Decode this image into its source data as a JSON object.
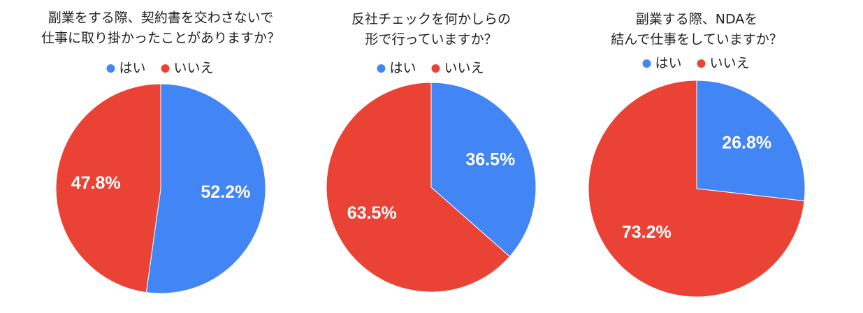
{
  "chart_data": [
    {
      "type": "pie",
      "title": [
        "副業をする際、契約書を交わさないで",
        "仕事に取り掛かったことがありますか？"
      ],
      "categories": [
        "はい",
        "いいえ"
      ],
      "values": [
        52.2,
        47.8
      ],
      "value_labels": [
        "52.2%",
        "47.8%"
      ],
      "colors": [
        "#4285f4",
        "#ea4335"
      ]
    },
    {
      "type": "pie",
      "title": [
        "反社チェックを何かしらの",
        "形で行っていますか？"
      ],
      "categories": [
        "はい",
        "いいえ"
      ],
      "values": [
        36.5,
        63.5
      ],
      "value_labels": [
        "36.5%",
        "63.5%"
      ],
      "colors": [
        "#4285f4",
        "#ea4335"
      ]
    },
    {
      "type": "pie",
      "title": [
        "副業する際、NDAを",
        "結んで仕事をしていますか？"
      ],
      "categories": [
        "はい",
        "いいえ"
      ],
      "values": [
        26.8,
        73.2
      ],
      "value_labels": [
        "26.8%",
        "73.2%"
      ],
      "colors": [
        "#4285f4",
        "#ea4335"
      ]
    }
  ]
}
